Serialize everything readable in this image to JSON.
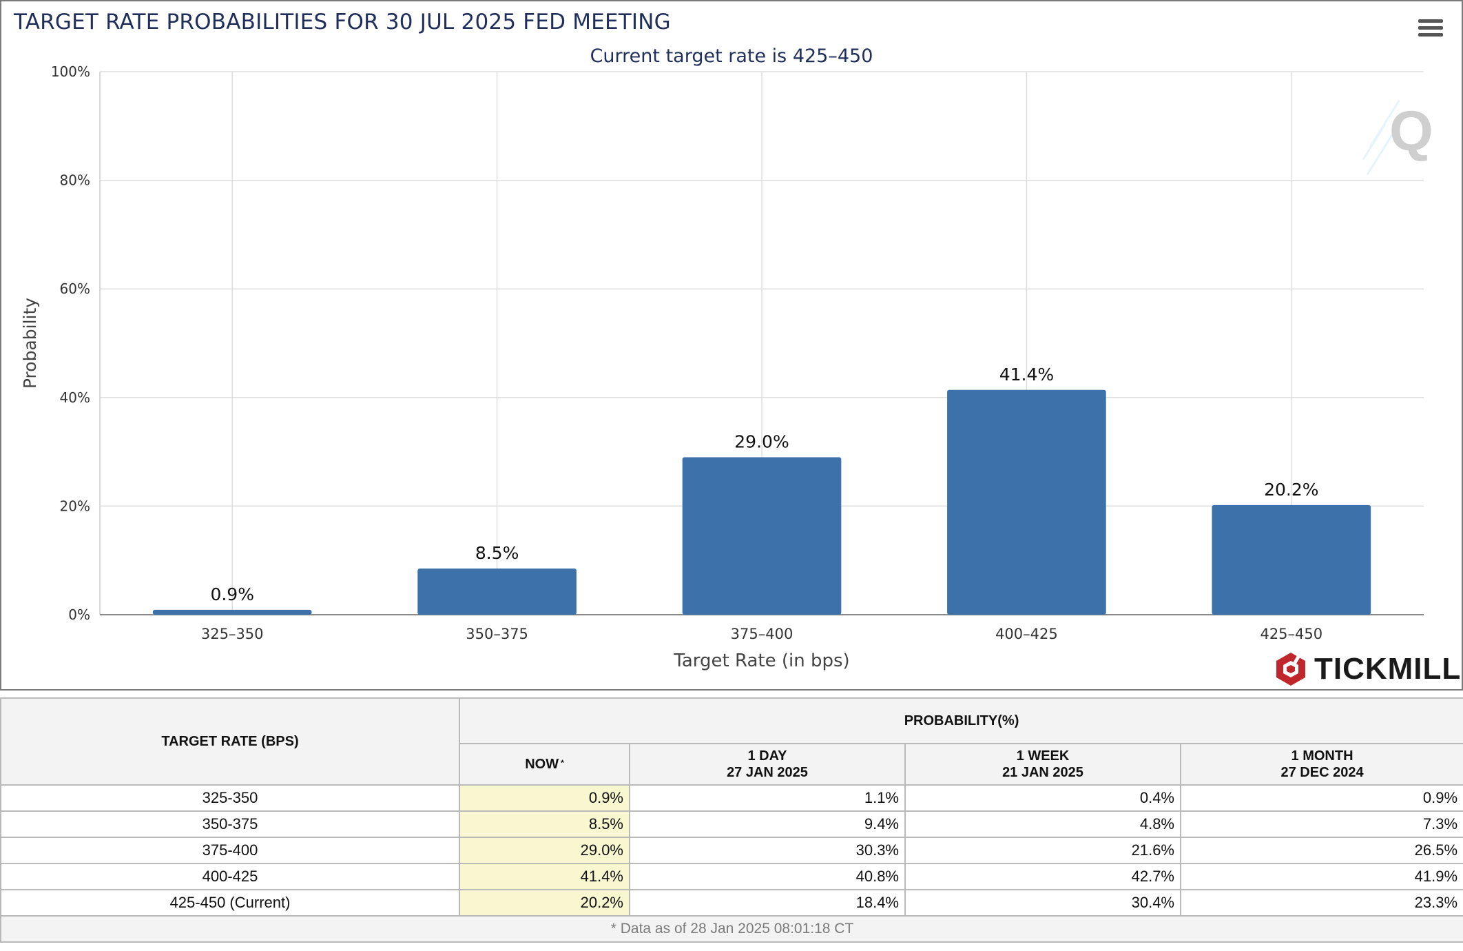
{
  "chart_data": {
    "type": "bar",
    "title": "TARGET RATE PROBABILITIES FOR 30 JUL 2025 FED MEETING",
    "subtitle": "Current target rate is 425–450",
    "xlabel": "Target Rate (in bps)",
    "ylabel": "Probability",
    "categories": [
      "325–350",
      "350–375",
      "375–400",
      "400–425",
      "425–450"
    ],
    "values": [
      0.9,
      8.5,
      29.0,
      41.4,
      20.2
    ],
    "value_labels": [
      "0.9%",
      "8.5%",
      "29.0%",
      "41.4%",
      "20.2%"
    ],
    "ylim": [
      0,
      100
    ],
    "yticks": [
      0,
      20,
      40,
      60,
      80,
      100
    ],
    "ytick_labels": [
      "0%",
      "20%",
      "40%",
      "60%",
      "80%",
      "100%"
    ],
    "grid": true,
    "bar_color": "#3d71a9"
  },
  "menu_icon": "hamburger-menu-icon",
  "logo": {
    "text": "TICKMILL",
    "color": "#c0272d"
  },
  "table": {
    "header_rate": "TARGET RATE (BPS)",
    "header_prob": "PROBABILITY(%)",
    "columns": [
      {
        "line1": "NOW",
        "line2": "",
        "mark": "*"
      },
      {
        "line1": "1 DAY",
        "line2": "27 JAN 2025",
        "mark": ""
      },
      {
        "line1": "1 WEEK",
        "line2": "21 JAN 2025",
        "mark": ""
      },
      {
        "line1": "1 MONTH",
        "line2": "27 DEC 2024",
        "mark": ""
      }
    ],
    "rows": [
      {
        "rate": "325-350",
        "now": "0.9%",
        "day": "1.1%",
        "week": "0.4%",
        "month": "0.9%"
      },
      {
        "rate": "350-375",
        "now": "8.5%",
        "day": "9.4%",
        "week": "4.8%",
        "month": "7.3%"
      },
      {
        "rate": "375-400",
        "now": "29.0%",
        "day": "30.3%",
        "week": "21.6%",
        "month": "26.5%"
      },
      {
        "rate": "400-425",
        "now": "41.4%",
        "day": "40.8%",
        "week": "42.7%",
        "month": "41.9%"
      },
      {
        "rate": "425-450 (Current)",
        "now": "20.2%",
        "day": "18.4%",
        "week": "30.4%",
        "month": "23.3%"
      }
    ],
    "footnote": "* Data as of 28 Jan 2025 08:01:18 CT",
    "now_highlight_color": "#f8f7cf"
  }
}
